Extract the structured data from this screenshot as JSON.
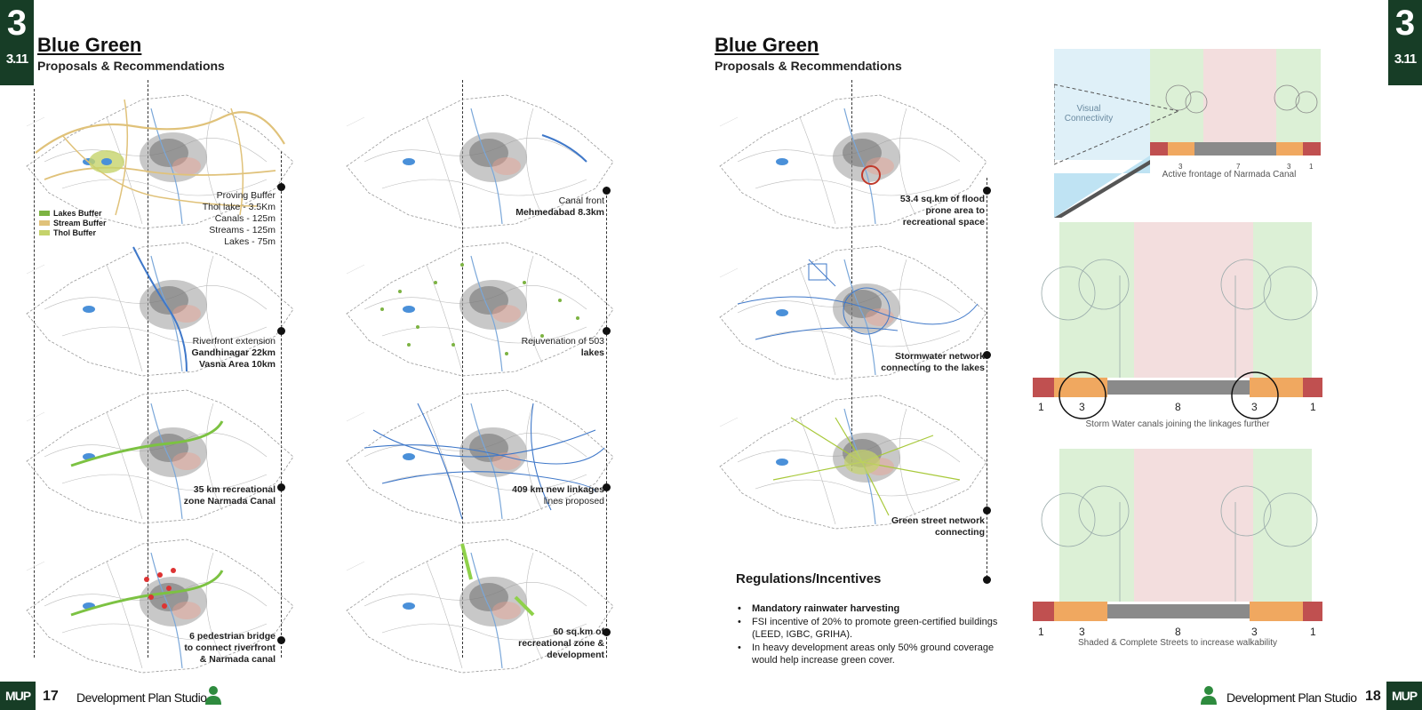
{
  "left_page": {
    "chapter_number": "3",
    "chapter_sub": "3.11",
    "title": "Blue Green",
    "subtitle": "Proposals & Recommendations",
    "legend": [
      {
        "label": "Lakes Buffer",
        "color": "#7cb342"
      },
      {
        "label": "Stream Buffer",
        "color": "#e0c27a"
      },
      {
        "label": "Thol Buffer",
        "color": "#c5d36b"
      }
    ],
    "captions": {
      "proving_buffer": [
        "Proving Buffer",
        "Thol lake - 3.5Km",
        "Canals - 125m",
        "Streams - 125m",
        "Lakes - 75m"
      ],
      "riverfront": [
        "Riverfront extension",
        "Gandhinagar  22km",
        "Vasna Area  10km"
      ],
      "recreational_canal": [
        "35 km recreational",
        "zone Narmada Canal"
      ],
      "pedestrian_bridge": [
        "6 pedestrian bridge",
        "to connect riverfront",
        "& Narmada canal"
      ],
      "canal_front": [
        "Canal front",
        "Mehmedabad  8.3km"
      ],
      "rejuvenation": [
        "Rejuvenation of 503",
        "lakes"
      ],
      "linkages": [
        "409 km new linkages",
        "lines proposed"
      ],
      "recreational_zone": [
        "60 sq.km of",
        "recreational zone &",
        "development"
      ]
    },
    "footer": {
      "badge": "MUP",
      "page": "17",
      "studio": "Development Plan Studio"
    }
  },
  "right_page": {
    "chapter_number": "3",
    "chapter_sub": "3.11",
    "title": "Blue Green",
    "subtitle": "Proposals & Recommendations",
    "captions": {
      "flood": [
        "53.4 sq.km of flood",
        "prone area to",
        "recreational space"
      ],
      "stormwater": [
        "Stormwater network",
        "connecting to the lakes"
      ],
      "green_street": [
        "Green street network",
        "connecting"
      ]
    },
    "regulations_title": "Regulations/Incentives",
    "regulations": [
      "Mandatory rainwater harvesting",
      "FSI incentive of 20% to promote green-certified buildings (LEED, IGBC, GRIHA).",
      "In heavy development areas only 50% ground coverage would help increase green cover."
    ],
    "sections": [
      {
        "caption": "Active frontage of Narmada Canal",
        "label": "Visual Connectivity",
        "dims": [
          "3",
          "7",
          "3",
          "1"
        ]
      },
      {
        "caption": "Storm Water canals joining the linkages further",
        "dims": [
          "1",
          "3",
          "8",
          "3",
          "1"
        ]
      },
      {
        "caption": "Shaded & Complete Streets to increase walkability",
        "dims": [
          "1",
          "3",
          "8",
          "3",
          "1"
        ]
      }
    ],
    "footer": {
      "badge": "MUP",
      "page": "18",
      "studio": "Development Plan Studio"
    }
  },
  "colors": {
    "brand": "#173d26",
    "water": "#4a90d9",
    "green": "#7cb342",
    "buffer": "#e0c27a",
    "urban": "#8a8a8a",
    "pink": "#f3dede",
    "lightgreen": "#dcf0d6"
  }
}
